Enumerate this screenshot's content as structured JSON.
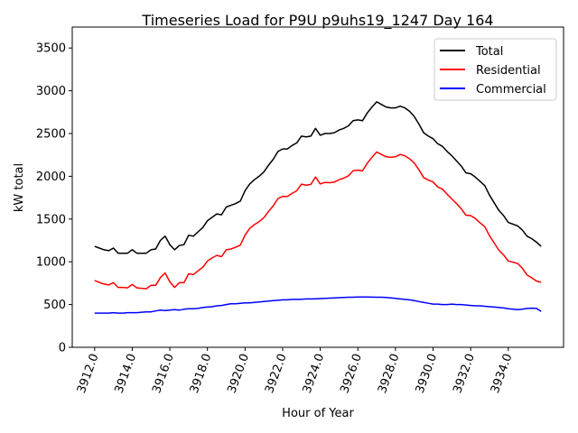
{
  "chart_data": {
    "type": "line",
    "title": "Timeseries Load for P9U p9uhs19_1247  Day 164",
    "xlabel": "Hour of Year",
    "ylabel": "kW total",
    "xlim": [
      3910.81,
      3936.94
    ],
    "ylim": [
      0,
      3745
    ],
    "grid": false,
    "legend_position": "top-right",
    "x_start": 3912.0,
    "x_step": 0.25,
    "xticks": [
      "3912.0",
      "3914.0",
      "3916.0",
      "3918.0",
      "3920.0",
      "3922.0",
      "3924.0",
      "3926.0",
      "3928.0",
      "3930.0",
      "3932.0",
      "3934.0"
    ],
    "yticks": [
      "0",
      "500",
      "1000",
      "1500",
      "2000",
      "2500",
      "3000",
      "3500"
    ],
    "series": [
      {
        "name": "Total",
        "color": "#000000",
        "values": [
          1180,
          1160,
          1140,
          1130,
          1160,
          1100,
          1100,
          1100,
          1140,
          1100,
          1100,
          1100,
          1140,
          1150,
          1250,
          1300,
          1200,
          1140,
          1190,
          1200,
          1310,
          1300,
          1350,
          1400,
          1480,
          1520,
          1560,
          1550,
          1640,
          1660,
          1680,
          1710,
          1830,
          1910,
          1960,
          2000,
          2050,
          2130,
          2200,
          2290,
          2320,
          2320,
          2360,
          2390,
          2470,
          2460,
          2470,
          2560,
          2480,
          2500,
          2500,
          2510,
          2540,
          2560,
          2590,
          2650,
          2660,
          2650,
          2740,
          2810,
          2870,
          2840,
          2810,
          2800,
          2800,
          2820,
          2800,
          2760,
          2700,
          2610,
          2510,
          2470,
          2440,
          2380,
          2350,
          2290,
          2240,
          2180,
          2120,
          2040,
          2030,
          1990,
          1940,
          1890,
          1780,
          1690,
          1600,
          1540,
          1460,
          1440,
          1420,
          1370,
          1300,
          1270,
          1230,
          1180
        ]
      },
      {
        "name": "Residential",
        "color": "#ff0000",
        "values": [
          780,
          760,
          740,
          730,
          755,
          700,
          700,
          695,
          735,
          695,
          690,
          685,
          725,
          725,
          815,
          870,
          765,
          700,
          755,
          755,
          860,
          850,
          895,
          935,
          1010,
          1045,
          1075,
          1060,
          1140,
          1150,
          1170,
          1195,
          1310,
          1390,
          1435,
          1470,
          1515,
          1590,
          1655,
          1740,
          1765,
          1765,
          1800,
          1830,
          1908,
          1895,
          1905,
          1992,
          1910,
          1928,
          1925,
          1932,
          1960,
          1978,
          2005,
          2065,
          2072,
          2062,
          2152,
          2223,
          2284,
          2255,
          2228,
          2222,
          2228,
          2255,
          2240,
          2205,
          2155,
          2075,
          1985,
          1955,
          1935,
          1875,
          1850,
          1790,
          1735,
          1680,
          1620,
          1545,
          1540,
          1505,
          1455,
          1410,
          1305,
          1220,
          1135,
          1080,
          1010,
          995,
          980,
          925,
          845,
          812,
          775,
          760
        ]
      },
      {
        "name": "Commercial",
        "color": "#0000ff",
        "values": [
          400,
          400,
          400,
          400,
          405,
          400,
          400,
          405,
          405,
          405,
          410,
          415,
          415,
          425,
          435,
          430,
          435,
          440,
          435,
          445,
          450,
          450,
          455,
          465,
          470,
          475,
          485,
          490,
          500,
          510,
          510,
          515,
          520,
          520,
          525,
          530,
          535,
          540,
          545,
          550,
          555,
          555,
          560,
          560,
          562,
          565,
          565,
          568,
          570,
          572,
          575,
          578,
          580,
          582,
          585,
          585,
          588,
          588,
          588,
          587,
          586,
          585,
          582,
          578,
          572,
          565,
          560,
          555,
          545,
          535,
          525,
          515,
          505,
          505,
          500,
          500,
          505,
          500,
          500,
          495,
          490,
          485,
          485,
          480,
          475,
          470,
          465,
          460,
          450,
          445,
          440,
          445,
          455,
          458,
          455,
          420
        ]
      }
    ]
  }
}
